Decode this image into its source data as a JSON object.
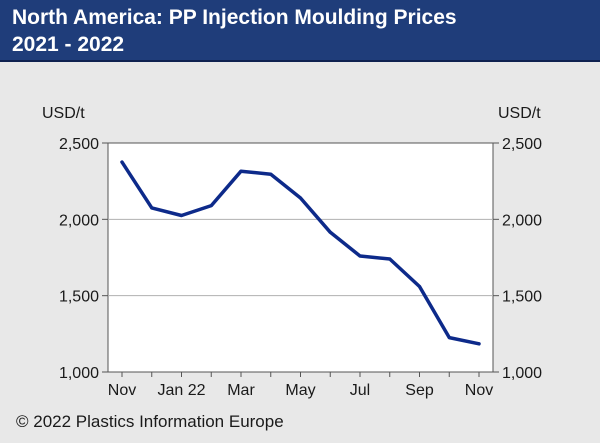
{
  "header": {
    "title_line1": "North America: PP Injection Moulding Prices",
    "title_line2": "2021 - 2022"
  },
  "footer": {
    "copyright": "© 2022 Plastics Information Europe"
  },
  "colors": {
    "header_bg": "#1f3d7a",
    "line": "#0d2a8a",
    "plot_bg": "#ffffff",
    "page_bg": "#e8e8e8"
  },
  "chart_data": {
    "type": "line",
    "ylabel_left": "USD/t",
    "ylabel_right": "USD/t",
    "ylim": [
      1000,
      2500
    ],
    "yticks": [
      1000,
      1500,
      2000,
      2500
    ],
    "ytick_labels": [
      "1,000",
      "1,500",
      "2,000",
      "2,500"
    ],
    "x_ticks": [
      "Nov",
      "Jan 22",
      "Mar",
      "May",
      "Jul",
      "Sep",
      "Nov"
    ],
    "x": [
      "Nov 21",
      "Dec 21",
      "Jan 22",
      "Feb 22",
      "Mar 22",
      "Apr 22",
      "May 22",
      "Jun 22",
      "Jul 22",
      "Aug 22",
      "Sep 22",
      "Oct 22",
      "Nov 22"
    ],
    "series": [
      {
        "values": [
          2375,
          2075,
          2025,
          2090,
          2315,
          2295,
          2140,
          1915,
          1760,
          1740,
          1560,
          1225,
          1185
        ]
      }
    ],
    "grid": "horizontal",
    "legend": "none"
  }
}
